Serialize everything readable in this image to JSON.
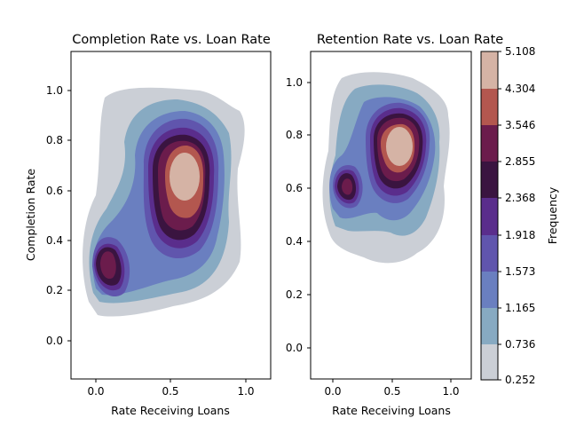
{
  "chart_data": [
    {
      "type": "contour",
      "title": "Completion Rate vs. Loan Rate",
      "xlabel": "Rate Receiving Loans",
      "ylabel": "Completion Rate",
      "xlim": [
        -0.15,
        1.17
      ],
      "ylim": [
        -0.16,
        1.16
      ],
      "xticks": [
        "0.0",
        "0.5",
        "1.0"
      ],
      "yticks": [
        "0.0",
        "0.2",
        "0.4",
        "0.6",
        "0.8",
        "1.0"
      ],
      "modes": [
        {
          "x": 0.58,
          "y": 0.65,
          "peak_frequency": 5.0
        },
        {
          "x": 0.08,
          "y": 0.3,
          "peak_frequency": 3.0
        }
      ]
    },
    {
      "type": "contour",
      "title": "Retention Rate vs. Loan Rate",
      "xlabel": "Rate Receiving Loans",
      "ylabel": "",
      "xlim": [
        -0.15,
        1.15
      ],
      "ylim": [
        -0.12,
        1.12
      ],
      "xticks": [
        "0.0",
        "0.5",
        "1.0"
      ],
      "yticks": [
        "0.0",
        "0.2",
        "0.4",
        "0.6",
        "0.8",
        "1.0"
      ],
      "modes": [
        {
          "x": 0.55,
          "y": 0.76,
          "peak_frequency": 5.0
        },
        {
          "x": 0.12,
          "y": 0.61,
          "peak_frequency": 2.9
        }
      ]
    }
  ],
  "colorbar": {
    "label": "Frequency",
    "ticks": [
      "0.252",
      "0.736",
      "1.165",
      "1.573",
      "1.918",
      "2.368",
      "2.855",
      "3.546",
      "4.304",
      "5.108"
    ],
    "colors": [
      "#cbcfd6",
      "#87aac2",
      "#6a7fc0",
      "#6055ad",
      "#5a2d8c",
      "#3a1440",
      "#6b1c4c",
      "#b3574f",
      "#d5b3a5"
    ]
  }
}
